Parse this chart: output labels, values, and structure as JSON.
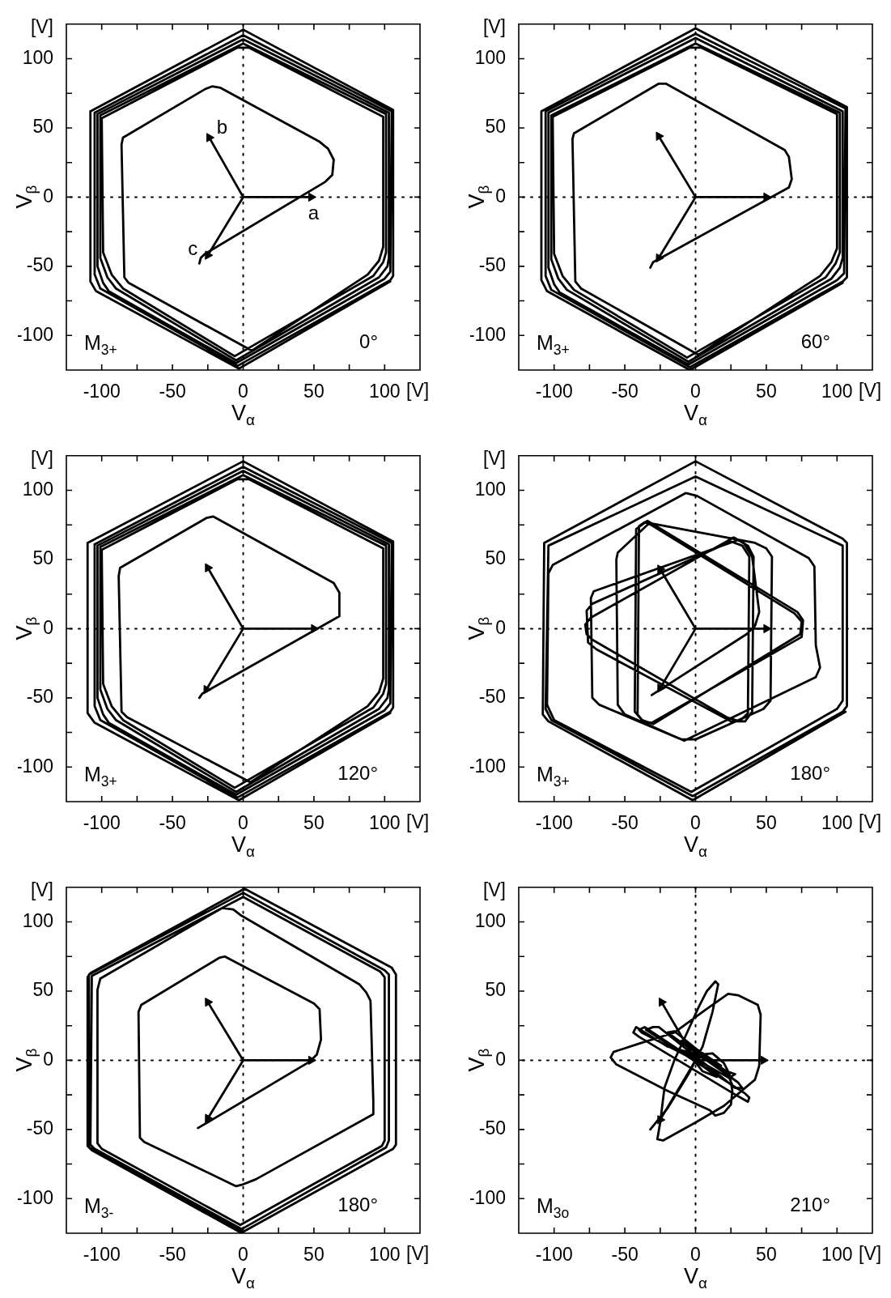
{
  "chart_data": [
    {
      "type": "line",
      "xlabel": "V$_{α}$",
      "ylabel": "V$_{β}$",
      "xlim": [
        -125,
        125
      ],
      "ylim": [
        -125,
        125
      ],
      "xticks": [
        -100,
        {
          "value": -75,
          "label": null
        },
        -50,
        {
          "value": -25,
          "label": null
        },
        0,
        {
          "value": 25,
          "label": null
        },
        50,
        {
          "value": 75,
          "label": null
        },
        100
      ],
      "yticks": [
        -100,
        {
          "value": -75,
          "label": null
        },
        -50,
        {
          "value": -25,
          "label": null
        },
        0,
        {
          "value": 25,
          "label": null
        },
        50,
        {
          "value": 75,
          "label": null
        },
        100
      ],
      "ref_lines": [
        {
          "axis": "x",
          "value": 0,
          "line_style": "dotted"
        },
        {
          "axis": "y",
          "value": 0,
          "line_style": "dotted"
        }
      ],
      "annotations": [
        "M$_{3+}$",
        "0°",
        "[V]",
        "[V]"
      ],
      "series": [
        {
          "color": "#000000",
          "x": [
            -31,
            -30,
            -27,
            58,
            63,
            64,
            60,
            54,
            -16,
            -22,
            -27,
            -85,
            -86,
            -84,
            -81,
            6,
            88,
            96,
            99,
            99,
            4,
            -4,
            -100,
            -99,
            -93,
            -85,
            -6,
            92,
            99,
            101,
            101,
            0,
            -101,
            -101,
            -96,
            -90,
            -5,
            96,
            102,
            103,
            103,
            0,
            -103,
            -103,
            -99,
            -95,
            -5,
            100,
            104,
            105,
            0,
            -105,
            -105,
            -101,
            -4,
            104,
            106,
            106,
            0,
            -108,
            -108,
            -104,
            -3,
            104
          ],
          "values": [
            -48,
            -44,
            -41,
            11,
            16,
            27,
            35,
            40,
            79,
            80,
            78,
            43,
            38,
            -58,
            -62,
            -111,
            -56,
            -46,
            -36,
            58,
            108,
            108,
            57,
            -40,
            -56,
            -66,
            -115,
            -57,
            -47,
            -40,
            60,
            111,
            59,
            -44,
            -58,
            -66,
            -118,
            -58,
            -50,
            -44,
            61,
            114,
            60,
            -50,
            -62,
            -68,
            -120,
            -59,
            -54,
            62,
            117,
            61,
            -56,
            -66,
            -122,
            -60,
            -57,
            63,
            121,
            62,
            -61,
            -68,
            -124,
            -61
          ]
        },
        {
          "name": "a",
          "color": "#000000",
          "marker": "triangle",
          "x": [
            0,
            48
          ],
          "values": [
            0,
            0
          ]
        },
        {
          "name": "b",
          "color": "#000000",
          "marker": "triangle",
          "x": [
            0,
            -24
          ],
          "values": [
            0,
            43
          ]
        },
        {
          "name": "c",
          "color": "#000000",
          "marker": "triangle",
          "x": [
            0,
            -25
          ],
          "values": [
            0,
            -42
          ]
        }
      ]
    },
    {
      "type": "line",
      "xlabel": "V$_{α}$",
      "ylabel": "V$_{β}$",
      "xlim": [
        -125,
        125
      ],
      "ylim": [
        -125,
        125
      ],
      "xticks": [
        -100,
        {
          "value": -75,
          "label": null
        },
        -50,
        {
          "value": -25,
          "label": null
        },
        0,
        {
          "value": 25,
          "label": null
        },
        50,
        {
          "value": 75,
          "label": null
        },
        100
      ],
      "yticks": [
        -100,
        {
          "value": -75,
          "label": null
        },
        -50,
        {
          "value": -25,
          "label": null
        },
        0,
        {
          "value": 25,
          "label": null
        },
        50,
        {
          "value": 75,
          "label": null
        },
        100
      ],
      "ref_lines": [
        {
          "axis": "x",
          "value": 0,
          "line_style": "dotted"
        },
        {
          "axis": "y",
          "value": 0,
          "line_style": "dotted"
        }
      ],
      "annotations": [
        "M$_{3+}$",
        "60°",
        "[V]",
        "[V]"
      ],
      "series": [
        {
          "color": "#000000",
          "x": [
            -32,
            -30,
            66,
            68,
            66,
            63,
            -21,
            -26,
            -86,
            -87,
            -85,
            -81,
            2,
            88,
            96,
            100,
            100,
            4,
            -4,
            -101,
            -100,
            -94,
            -86,
            -6,
            92,
            99,
            102,
            102,
            0,
            -102,
            -102,
            -97,
            -91,
            -5,
            96,
            102,
            104,
            104,
            0,
            -104,
            -104,
            -100,
            -96,
            -5,
            100,
            105,
            106,
            0,
            -106,
            -106,
            -102,
            -4,
            104,
            107,
            107,
            0,
            -109,
            -109,
            -105,
            -4,
            104
          ],
          "values": [
            -51,
            -47,
            7,
            13,
            29,
            34,
            82,
            82,
            46,
            42,
            -61,
            -66,
            -114,
            -57,
            -47,
            -37,
            60,
            108,
            108,
            58,
            -41,
            -57,
            -67,
            -116,
            -58,
            -48,
            -40,
            61,
            111,
            59,
            -45,
            -59,
            -67,
            -119,
            -59,
            -51,
            -44,
            62,
            115,
            61,
            -51,
            -63,
            -69,
            -121,
            -60,
            -55,
            64,
            118,
            62,
            -57,
            -67,
            -123,
            -61,
            -58,
            65,
            122,
            62,
            -60,
            -68,
            -125,
            -62
          ]
        },
        {
          "color": "#000000",
          "marker": "triangle",
          "x": [
            0,
            50
          ],
          "values": [
            0,
            0
          ]
        },
        {
          "color": "#000000",
          "marker": "triangle",
          "x": [
            0,
            -26
          ],
          "values": [
            0,
            44
          ]
        },
        {
          "color": "#000000",
          "marker": "triangle",
          "x": [
            0,
            -26
          ],
          "values": [
            0,
            -44
          ]
        }
      ]
    },
    {
      "type": "line",
      "xlabel": "V$_{α}$",
      "ylabel": "V$_{β}$",
      "xlim": [
        -125,
        125
      ],
      "ylim": [
        -125,
        125
      ],
      "xticks": [
        -100,
        {
          "value": -75,
          "label": null
        },
        -50,
        {
          "value": -25,
          "label": null
        },
        0,
        {
          "value": 25,
          "label": null
        },
        50,
        {
          "value": 75,
          "label": null
        },
        100
      ],
      "yticks": [
        -100,
        {
          "value": -75,
          "label": null
        },
        -50,
        {
          "value": -25,
          "label": null
        },
        0,
        {
          "value": 25,
          "label": null
        },
        50,
        {
          "value": 75,
          "label": null
        },
        100
      ],
      "ref_lines": [
        {
          "axis": "x",
          "value": 0,
          "line_style": "dotted"
        },
        {
          "axis": "y",
          "value": 0,
          "line_style": "dotted"
        }
      ],
      "annotations": [
        "M$_{3+}$",
        "120°",
        "[V]",
        "[V]"
      ],
      "series": [
        {
          "color": "#000000",
          "x": [
            -31,
            -29,
            68,
            68,
            64,
            -21,
            -26,
            -87,
            -88,
            -86,
            -82,
            5,
            88,
            96,
            99,
            99,
            4,
            -4,
            -100,
            -99,
            -93,
            -85,
            -6,
            92,
            99,
            101,
            101,
            0,
            -101,
            -101,
            -96,
            -90,
            -5,
            96,
            102,
            103,
            103,
            0,
            -103,
            -103,
            -99,
            -95,
            -5,
            100,
            104,
            105,
            0,
            -105,
            -105,
            -101,
            -4,
            104,
            106,
            106,
            0,
            -110,
            -110,
            -105,
            -3,
            104
          ],
          "values": [
            -50,
            -47,
            9,
            26,
            33,
            81,
            80,
            44,
            38,
            -60,
            -64,
            -111,
            -56,
            -46,
            -36,
            58,
            108,
            108,
            57,
            -40,
            -56,
            -66,
            -115,
            -57,
            -47,
            -40,
            60,
            111,
            59,
            -44,
            -58,
            -66,
            -118,
            -58,
            -50,
            -44,
            61,
            114,
            60,
            -50,
            -62,
            -68,
            -120,
            -59,
            -54,
            62,
            117,
            61,
            -56,
            -66,
            -122,
            -60,
            -57,
            63,
            121,
            62,
            -61,
            -68,
            -124,
            -61
          ]
        },
        {
          "color": "#000000",
          "marker": "triangle",
          "x": [
            0,
            50
          ],
          "values": [
            0,
            0
          ]
        },
        {
          "color": "#000000",
          "marker": "triangle",
          "x": [
            0,
            -25
          ],
          "values": [
            0,
            44
          ]
        },
        {
          "color": "#000000",
          "marker": "triangle",
          "x": [
            0,
            -26
          ],
          "values": [
            0,
            -44
          ]
        }
      ]
    },
    {
      "type": "line",
      "xlabel": "V$_{α}$",
      "ylabel": "V$_{β}$",
      "xlim": [
        -125,
        125
      ],
      "ylim": [
        -125,
        125
      ],
      "xticks": [
        -100,
        {
          "value": -75,
          "label": null
        },
        -50,
        {
          "value": -25,
          "label": null
        },
        0,
        {
          "value": 25,
          "label": null
        },
        50,
        {
          "value": 75,
          "label": null
        },
        100
      ],
      "yticks": [
        -100,
        {
          "value": -75,
          "label": null
        },
        -50,
        {
          "value": -25,
          "label": null
        },
        0,
        {
          "value": 25,
          "label": null
        },
        50,
        {
          "value": 75,
          "label": null
        },
        100
      ],
      "ref_lines": [
        {
          "axis": "x",
          "value": 0,
          "line_style": "dotted"
        },
        {
          "axis": "y",
          "value": 0,
          "line_style": "dotted"
        }
      ],
      "annotations": [
        "M$_{3+}$",
        "180°",
        "[V]",
        "[V]"
      ],
      "series": [
        {
          "color": "#000000",
          "x": [
            -31,
            36,
            42,
            45,
            40,
            34,
            27,
            -74,
            -78,
            -77,
            -73,
            22,
            31,
            37,
            38,
            33,
            25,
            -73,
            -77,
            -76,
            -70,
            25,
            35,
            40,
            41,
            37,
            30,
            -72,
            -74,
            -73,
            -68,
            -10,
            0,
            48,
            53,
            54,
            50,
            42,
            -36,
            -40,
            -41,
            -37,
            -31,
            75,
            76,
            72,
            -34,
            -42,
            -43,
            -38,
            -30,
            74,
            75,
            70,
            -33,
            -55,
            -56,
            -55,
            -50,
            -8,
            85,
            88,
            85,
            84,
            80,
            1,
            -7,
            -101,
            -104,
            -105,
            -100,
            -3,
            100,
            104,
            104,
            0,
            -104,
            -106,
            -102,
            -2,
            104,
            107,
            107,
            104,
            0,
            -107,
            -108,
            -104,
            -2,
            106
          ],
          "values": [
            -48,
            -4,
            2,
            12,
            52,
            62,
            66,
            8,
            3,
            -4,
            -8,
            -64,
            -67,
            -61,
            52,
            60,
            63,
            18,
            13,
            -10,
            -15,
            -67,
            -67,
            -60,
            52,
            60,
            64,
            27,
            22,
            -50,
            -55,
            -80,
            -80,
            -58,
            -52,
            52,
            58,
            62,
            77,
            74,
            -62,
            -67,
            -68,
            -6,
            6,
            12,
            78,
            72,
            -60,
            -66,
            -69,
            -4,
            5,
            11,
            76,
            55,
            50,
            -55,
            -62,
            -81,
            -35,
            -28,
            -12,
            45,
            51,
            96,
            98,
            46,
            40,
            -55,
            -66,
            -118,
            -58,
            -52,
            60,
            110,
            60,
            -58,
            -66,
            -121,
            -60,
            -56,
            62,
            65,
            121,
            62,
            -62,
            -67,
            -124,
            -60
          ]
        },
        {
          "color": "#000000",
          "marker": "triangle",
          "x": [
            0,
            50
          ],
          "values": [
            0,
            0
          ]
        },
        {
          "color": "#000000",
          "marker": "triangle",
          "x": [
            0,
            -25
          ],
          "values": [
            0,
            43
          ]
        },
        {
          "color": "#000000",
          "marker": "triangle",
          "x": [
            0,
            -25
          ],
          "values": [
            0,
            -43
          ]
        }
      ]
    },
    {
      "type": "line",
      "xlabel": "V$_{α}$",
      "ylabel": "V$_{β}$",
      "xlim": [
        -125,
        125
      ],
      "ylim": [
        -125,
        125
      ],
      "xticks": [
        -100,
        {
          "value": -75,
          "label": null
        },
        -50,
        {
          "value": -25,
          "label": null
        },
        0,
        {
          "value": 25,
          "label": null
        },
        50,
        {
          "value": 75,
          "label": null
        },
        100
      ],
      "yticks": [
        -100,
        {
          "value": -75,
          "label": null
        },
        -50,
        {
          "value": -25,
          "label": null
        },
        0,
        {
          "value": 25,
          "label": null
        },
        50,
        {
          "value": 75,
          "label": null
        },
        100
      ],
      "ref_lines": [
        {
          "axis": "x",
          "value": 0,
          "line_style": "dotted"
        },
        {
          "axis": "y",
          "value": 0,
          "line_style": "dotted"
        }
      ],
      "annotations": [
        "M$_{3-}$",
        "180°",
        "[V]",
        "[V]"
      ],
      "series": [
        {
          "color": "#000000",
          "x": [
            -32,
            47,
            52,
            55,
            54,
            50,
            -13,
            -17,
            -72,
            -74,
            -73,
            -70,
            -5,
            -1,
            9,
            92,
            92,
            90,
            87,
            82,
            -2,
            -7,
            -15,
            -101,
            -103,
            -103,
            -100,
            -2,
            98,
            100,
            100,
            97,
            0,
            -107,
            -108,
            -105,
            -1,
            101,
            103,
            103,
            100,
            0,
            -109,
            -109,
            0,
            106,
            108,
            108,
            105,
            1,
            -108,
            -110,
            -110,
            -107,
            -1
          ],
          "values": [
            -49,
            -1,
            4,
            15,
            37,
            41,
            75,
            74,
            40,
            35,
            -56,
            -59,
            -91,
            -90,
            -86,
            -39,
            -30,
            43,
            49,
            55,
            105,
            109,
            110,
            59,
            51,
            -60,
            -64,
            -119,
            -62,
            -58,
            60,
            64,
            118,
            61,
            -61,
            -64,
            -122,
            -63,
            -58,
            62,
            65,
            121,
            62,
            -63,
            -124,
            -64,
            -61,
            62,
            67,
            124,
            63,
            60,
            -62,
            -65,
            -125
          ]
        },
        {
          "color": "#000000",
          "marker": "triangle",
          "x": [
            0,
            48
          ],
          "values": [
            0,
            0
          ]
        },
        {
          "color": "#000000",
          "marker": "triangle",
          "x": [
            0,
            -25
          ],
          "values": [
            0,
            42
          ]
        },
        {
          "color": "#000000",
          "marker": "triangle",
          "x": [
            0,
            -25
          ],
          "values": [
            0,
            -42
          ]
        }
      ]
    },
    {
      "type": "line",
      "xlabel": "V$_{α}$",
      "ylabel": "V$_{β}$",
      "xlim": [
        -125,
        125
      ],
      "ylim": [
        -125,
        125
      ],
      "xticks": [
        -100,
        {
          "value": -75,
          "label": null
        },
        -50,
        {
          "value": -25,
          "label": null
        },
        0,
        {
          "value": 25,
          "label": null
        },
        50,
        {
          "value": 75,
          "label": null
        },
        100
      ],
      "yticks": [
        -100,
        {
          "value": -75,
          "label": null
        },
        -50,
        {
          "value": -25,
          "label": null
        },
        0,
        {
          "value": 25,
          "label": null
        },
        50,
        {
          "value": 75,
          "label": null
        },
        100
      ],
      "ref_lines": [
        {
          "axis": "x",
          "value": 0,
          "line_style": "dotted"
        },
        {
          "axis": "y",
          "value": 0,
          "line_style": "dotted"
        }
      ],
      "annotations": [
        "M$_{3o}$",
        "210°",
        "[V]",
        "[V]"
      ],
      "series": [
        {
          "color": "#000000",
          "x": [
            -32,
            -20,
            -5,
            5,
            12,
            16,
            14,
            8,
            2,
            -6,
            -15,
            -22,
            -25,
            -27,
            -23,
            0,
            20,
            35,
            42,
            45,
            46,
            44,
            30,
            23,
            5,
            -15,
            -40,
            -58,
            -60,
            -56,
            -20,
            10,
            14,
            20,
            25,
            26,
            24,
            20,
            12,
            2,
            -20,
            -42,
            -44,
            -40,
            30,
            37,
            38,
            35,
            -35,
            -30,
            -26,
            28,
            33,
            30,
            -20,
            -15,
            25,
            28,
            22,
            -10,
            -5,
            18,
            10,
            -5,
            5,
            15,
            0,
            -38,
            -40,
            -36,
            20,
            26,
            24,
            -12,
            5,
            12
          ],
          "values": [
            -50,
            -35,
            -10,
            10,
            35,
            55,
            57,
            50,
            38,
            20,
            0,
            -20,
            -45,
            -57,
            -58,
            -45,
            -33,
            -20,
            -14,
            -4,
            33,
            40,
            47,
            48,
            35,
            20,
            12,
            6,
            2,
            -3,
            -22,
            -36,
            -40,
            -38,
            -32,
            -22,
            -10,
            -2,
            5,
            4,
            10,
            24,
            20,
            17,
            -26,
            -30,
            -27,
            -24,
            22,
            24,
            24,
            -20,
            -20,
            -16,
            20,
            21,
            -12,
            -10,
            -8,
            14,
            12,
            -4,
            0,
            5,
            -8,
            -12,
            0,
            20,
            22,
            24,
            -14,
            -18,
            -13,
            8,
            -2,
            -6
          ]
        },
        {
          "color": "#000000",
          "marker": "triangle",
          "x": [
            0,
            48
          ],
          "values": [
            0,
            0
          ]
        },
        {
          "color": "#000000",
          "marker": "triangle",
          "x": [
            0,
            -24
          ],
          "values": [
            0,
            42
          ]
        },
        {
          "color": "#000000",
          "marker": "triangle",
          "x": [
            0,
            -25
          ],
          "values": [
            0,
            -43
          ]
        }
      ]
    }
  ]
}
